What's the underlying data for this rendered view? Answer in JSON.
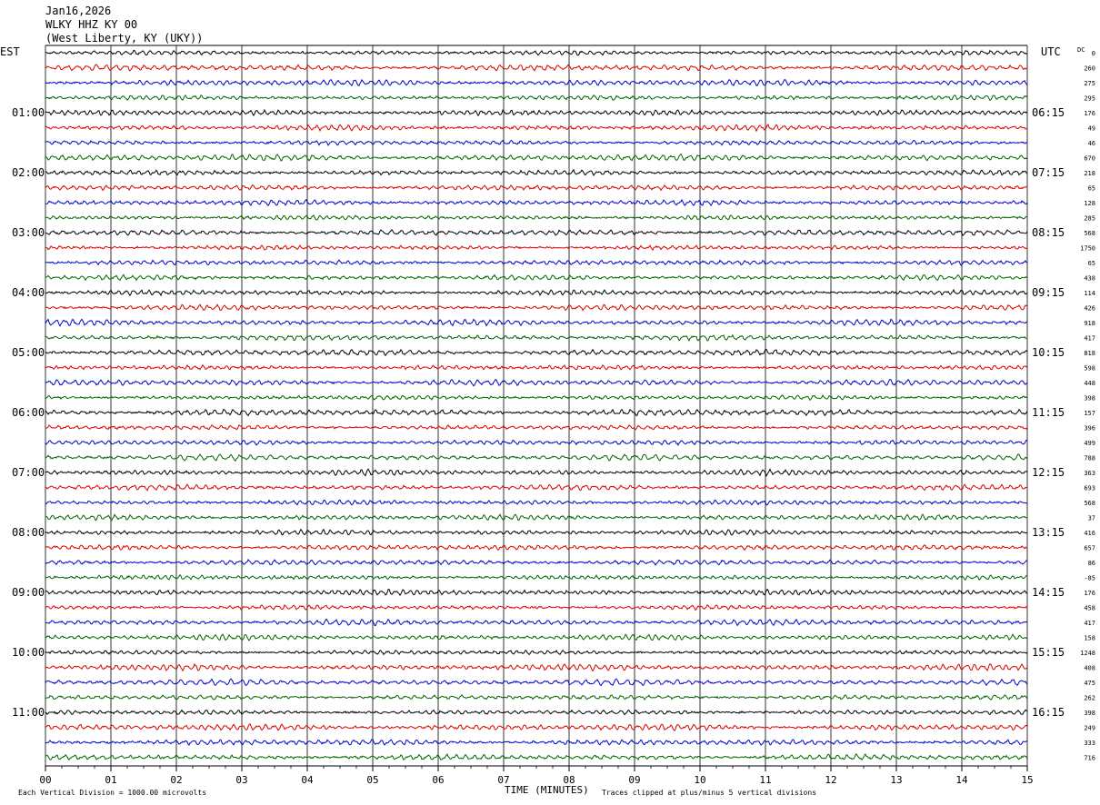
{
  "header": {
    "date": "Jan16,2026",
    "station": "WLKY HHZ KY 00",
    "location": "(West Liberty, KY (UKY))"
  },
  "left_label": "EST",
  "right_label": "UTC",
  "dc_label": "DC",
  "footer": {
    "scale_note": "Each Vertical Division = 1000.00 microvolts",
    "x_axis_title": "TIME (MINUTES)",
    "clip_note": "Traces clipped at plus/minus 5 vertical divisions"
  },
  "chart_data": {
    "type": "line",
    "title": "",
    "xlabel": "TIME (MINUTES)",
    "ylabel": "",
    "xlim": [
      0,
      15
    ],
    "x_ticks": [
      "00",
      "01",
      "02",
      "03",
      "04",
      "05",
      "06",
      "07",
      "08",
      "09",
      "10",
      "11",
      "12",
      "13",
      "14",
      "15"
    ],
    "est_hour_labels": [
      "01:00",
      "02:00",
      "03:00",
      "04:00",
      "05:00",
      "06:00",
      "07:00",
      "08:00",
      "09:00",
      "10:00",
      "11:00"
    ],
    "utc_hour_labels": [
      "06:15",
      "07:15",
      "08:15",
      "09:15",
      "10:15",
      "11:15",
      "12:15",
      "13:15",
      "14:15",
      "15:15",
      "16:15"
    ],
    "trace_colors": [
      "#000000",
      "#dd0000",
      "#0000cc",
      "#006600"
    ],
    "trace_count": 48,
    "dc_offsets": [
      "0",
      "260",
      "275",
      "295",
      "176",
      "49",
      "46",
      "670",
      "218",
      "65",
      "128",
      "285",
      "568",
      "1750",
      "65",
      "438",
      "114",
      "426",
      "918",
      "417",
      "818",
      "598",
      "448",
      "398",
      "157",
      "396",
      "499",
      "788",
      "363",
      "693",
      "568",
      "37",
      "416",
      "657",
      "86",
      "-85",
      "176",
      "458",
      "417",
      "158",
      "1248",
      "408",
      "475",
      "262",
      "398",
      "249",
      "333",
      "716"
    ]
  }
}
